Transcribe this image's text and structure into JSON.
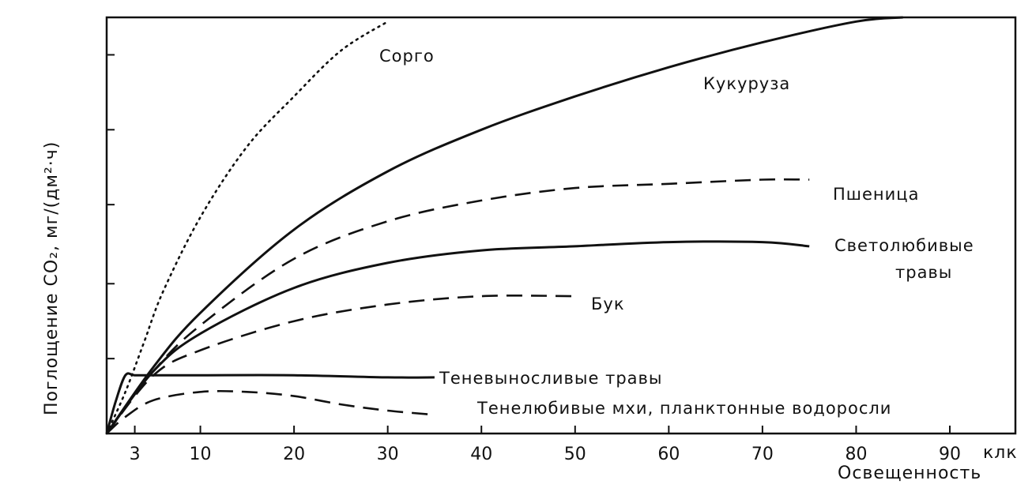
{
  "chart_data": {
    "type": "line",
    "xlabel": "Освещенность",
    "ylabel": "Поглощение CO₂, мг/(дм²·ч)",
    "x_unit": "клк",
    "xlim": [
      0,
      97
    ],
    "ylim": [
      0,
      100
    ],
    "x_ticks": [
      3,
      10,
      20,
      30,
      40,
      50,
      60,
      70,
      80,
      90
    ],
    "x_tick_labels": [
      "3",
      "10",
      "20",
      "30",
      "40",
      "50",
      "60",
      "70",
      "80",
      "90"
    ],
    "y_tick_labels_shown": false,
    "grid": false,
    "series": [
      {
        "name": "Сорго",
        "style": "dotted",
        "x": [
          0,
          2,
          4,
          6,
          10,
          15,
          20,
          25,
          30
        ],
        "y": [
          0,
          10,
          22,
          34,
          52,
          69,
          81,
          92,
          99
        ]
      },
      {
        "name": "Кукуруза",
        "style": "solid",
        "x": [
          0,
          5,
          10,
          20,
          30,
          40,
          50,
          60,
          70,
          80,
          85
        ],
        "y": [
          0,
          16,
          29,
          49,
          63,
          73,
          81,
          88,
          94,
          99,
          100
        ]
      },
      {
        "name": "Пшеница",
        "style": "dashed",
        "x": [
          0,
          5,
          10,
          20,
          30,
          40,
          50,
          60,
          70,
          75
        ],
        "y": [
          0,
          15,
          26,
          42,
          51,
          56,
          59,
          60,
          61,
          61
        ]
      },
      {
        "name": "Светолюбивые травы",
        "style": "solid",
        "x": [
          0,
          5,
          10,
          20,
          30,
          40,
          50,
          60,
          70,
          75
        ],
        "y": [
          0,
          15,
          24,
          35,
          41,
          44,
          45,
          46,
          46,
          45
        ]
      },
      {
        "name": "Бук",
        "style": "dashed",
        "x": [
          0,
          5,
          10,
          20,
          30,
          40,
          50
        ],
        "y": [
          0,
          14,
          20,
          27,
          31,
          33,
          33
        ]
      },
      {
        "name": "Теневыносливые травы",
        "style": "solid",
        "x": [
          0,
          1,
          2,
          3,
          5,
          10,
          20,
          30,
          35
        ],
        "y": [
          0,
          8,
          14,
          14,
          14,
          14,
          14,
          13.5,
          13.5
        ]
      },
      {
        "name": "Тенелюбивые мхи, планктонные водоросли",
        "style": "dashed",
        "x": [
          0,
          2,
          5,
          10,
          15,
          20,
          25,
          30,
          35
        ],
        "y": [
          0,
          4,
          8,
          10,
          10,
          9,
          7,
          5.5,
          4.5
        ]
      }
    ],
    "labels": {
      "sorgo": "Сорго",
      "corn": "Кукуруза",
      "wheat": "Пшеница",
      "light_grass_1": "Светолюбивые",
      "light_grass_2": "травы",
      "beech": "Бук",
      "shade_tolerant": "Теневыносливые травы",
      "shade_loving": "Тенелюбивые мхи, планктонные водоросли"
    }
  }
}
